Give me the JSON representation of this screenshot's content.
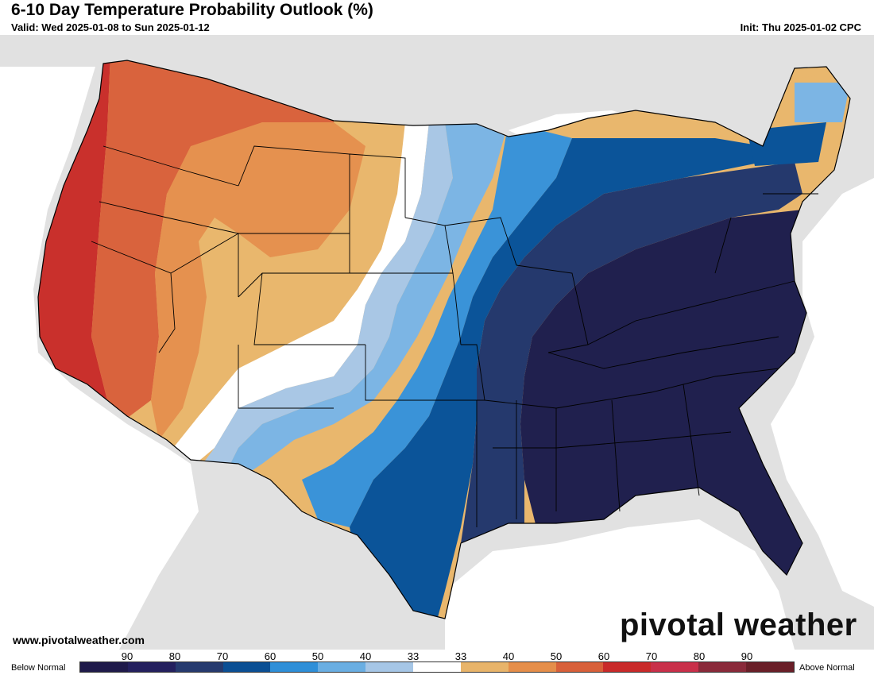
{
  "header": {
    "title": "6-10 Day Temperature Probability Outlook (%)",
    "valid": "Valid: Wed 2025-01-08 to Sun 2025-01-12",
    "init": "Init: Thu 2025-01-02 CPC"
  },
  "footer": {
    "url": "www.pivotalweather.com",
    "brand": "pivotal weather"
  },
  "legend": {
    "below_label": "Below Normal",
    "above_label": "Above Normal",
    "ticks": [
      "90",
      "80",
      "70",
      "60",
      "50",
      "40",
      "33",
      "33",
      "40",
      "50",
      "60",
      "70",
      "80",
      "90"
    ],
    "colors": [
      "#1f1a4a",
      "#24205e",
      "#263a6e",
      "#0b4f94",
      "#2f8fd8",
      "#6aaee2",
      "#a6c6e6",
      "#ffffff",
      "#e8b46a",
      "#e58e4a",
      "#d8603a",
      "#c92a2a",
      "#c9304a",
      "#8a2a3a",
      "#6a1f28"
    ]
  },
  "map": {
    "region": "Contiguous United States",
    "colors": {
      "land_outside": "#e1e1e1",
      "water": "#ffffff",
      "deep_below": "#20204e",
      "below_70": "#25396d",
      "below_60": "#0b5499",
      "below_50": "#3a93d8",
      "below_40": "#7cb5e4",
      "below_33": "#a9c7e5",
      "near_normal": "#ffffff",
      "above_33": "#e9b76d",
      "above_40": "#e5914f",
      "above_50": "#d9633d",
      "above_60": "#c9302c"
    }
  }
}
